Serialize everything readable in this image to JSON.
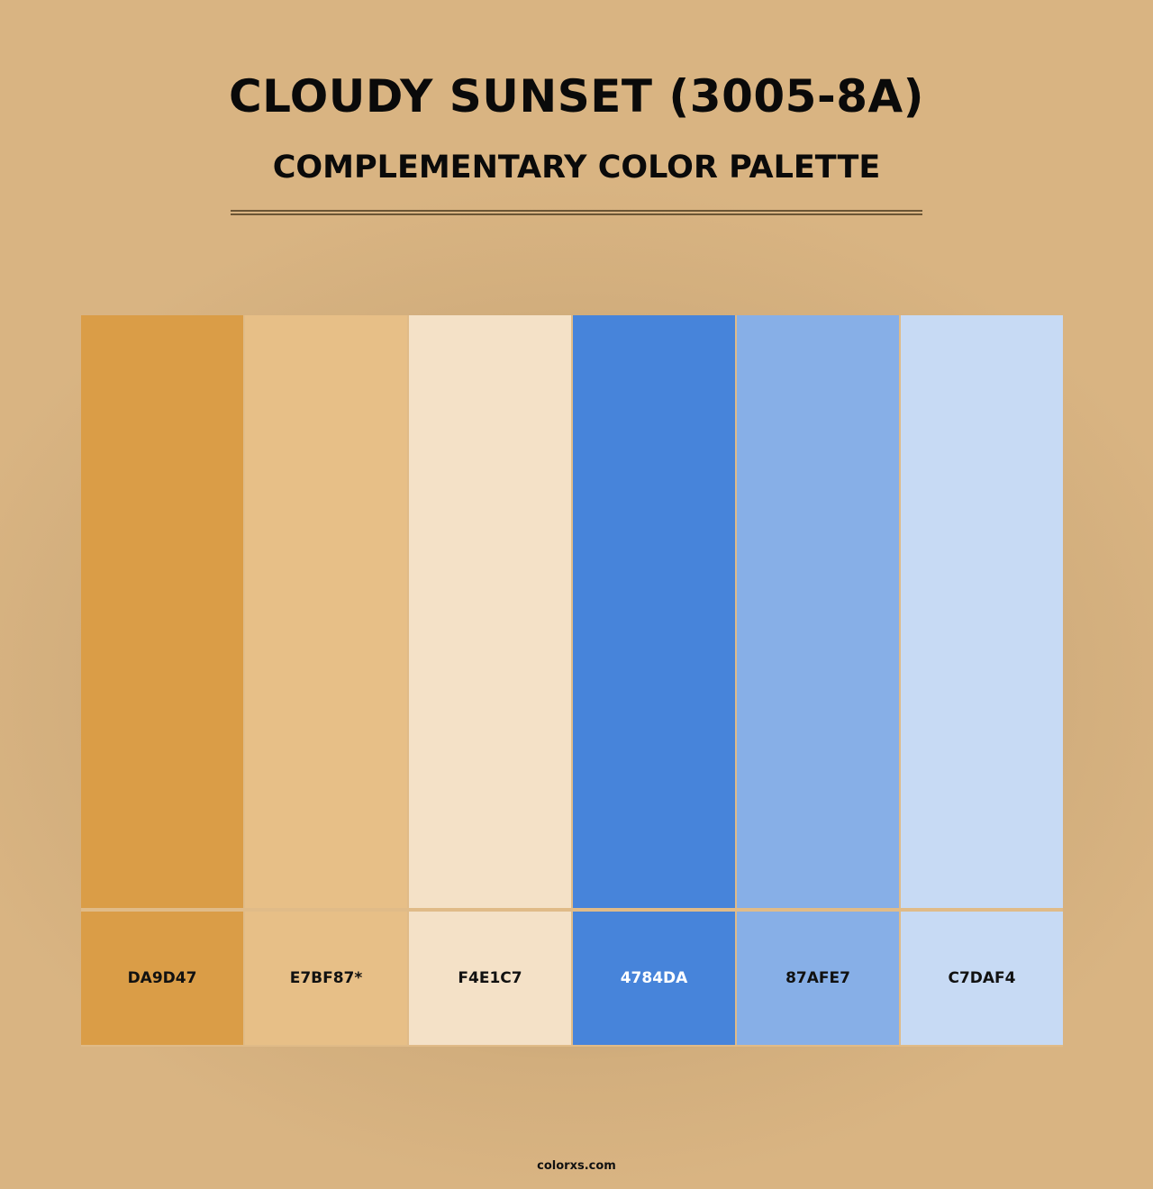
{
  "header": {
    "title": "CLOUDY SUNSET (3005-8A)",
    "subtitle": "COMPLEMENTARY COLOR PALETTE"
  },
  "swatches": [
    {
      "label": "DA9D47",
      "color": "#DA9D47",
      "text_color": "#111111"
    },
    {
      "label": "E7BF87*",
      "color": "#E7BF87",
      "text_color": "#111111"
    },
    {
      "label": "F4E1C7",
      "color": "#F4E1C7",
      "text_color": "#111111"
    },
    {
      "label": "4784DA",
      "color": "#4784DA",
      "text_color": "#ffffff"
    },
    {
      "label": "87AFE7",
      "color": "#87AFE7",
      "text_color": "#111111"
    },
    {
      "label": "C7DAF4",
      "color": "#C7DAF4",
      "text_color": "#111111"
    }
  ],
  "footer": {
    "site": "colorxs.com"
  }
}
